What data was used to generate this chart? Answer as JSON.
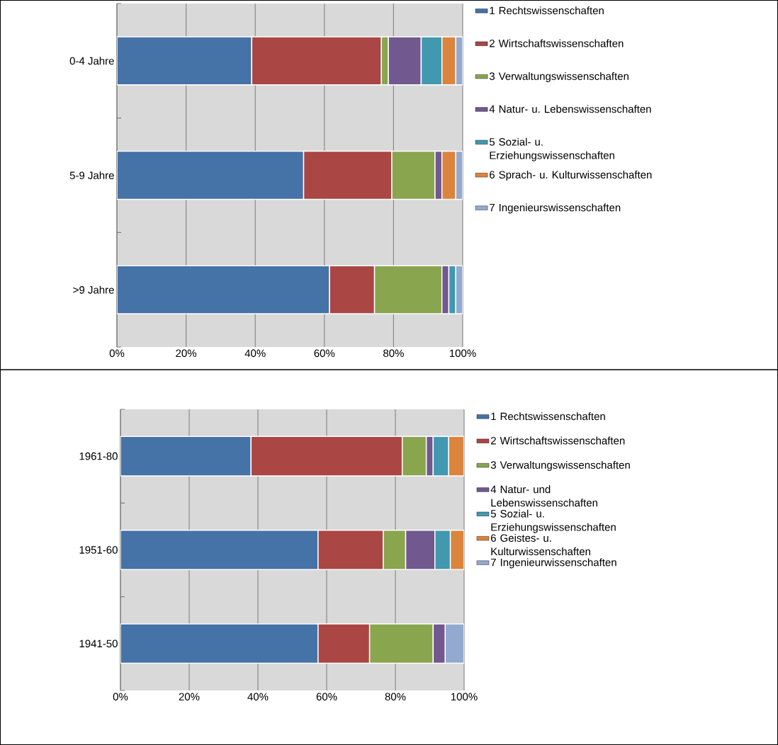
{
  "chart_data": [
    {
      "type": "bar",
      "orientation": "horizontal",
      "stacked": true,
      "categories": [
        "0-4 Jahre",
        "5-9 Jahre",
        ">9 Jahre"
      ],
      "series": [
        {
          "name": "1 Rechtswissenschaften",
          "color": "#4572a7",
          "values": [
            39,
            54,
            61.5
          ]
        },
        {
          "name": "2 Wirtschaftswissenschaften",
          "color": "#aa4643",
          "values": [
            37.5,
            25.5,
            13
          ]
        },
        {
          "name": "3 Verwaltungswissenschaften",
          "color": "#89a54e",
          "values": [
            2,
            12.5,
            19.5
          ]
        },
        {
          "name": "4 Natur- u. Lebenswissenschaften",
          "color": "#71588f",
          "values": [
            9.5,
            2,
            2
          ]
        },
        {
          "name": "5 Sozial- u. Erziehungswissenschaften",
          "color": "#4198af",
          "values": [
            6,
            null,
            2
          ]
        },
        {
          "name": "6 Sprach- u. Kulturwissenschaften",
          "color": "#db843d",
          "values": [
            4,
            4,
            null
          ]
        },
        {
          "name": "7 Ingenieurswissenschaften",
          "color": "#93a9cf",
          "values": [
            2,
            2,
            2
          ]
        }
      ],
      "xlim": [
        0,
        100
      ],
      "xticks": [
        {
          "value": 0,
          "label": "0%"
        },
        {
          "value": 20,
          "label": "20%"
        },
        {
          "value": 40,
          "label": "40%"
        },
        {
          "value": 60,
          "label": "60%"
        },
        {
          "value": 80,
          "label": "80%"
        },
        {
          "value": 100,
          "label": "100%"
        }
      ],
      "grid": "x",
      "legend": "right"
    },
    {
      "type": "bar",
      "orientation": "horizontal",
      "stacked": true,
      "categories": [
        "1961-80",
        "1951-60",
        "1941-50"
      ],
      "series": [
        {
          "name": "1 Rechtswissenschaften",
          "color": "#4572a7",
          "values": [
            38,
            57.5,
            57.5
          ]
        },
        {
          "name": "2 Wirtschaftswissenschaften",
          "color": "#aa4643",
          "values": [
            44,
            19,
            15
          ]
        },
        {
          "name": "3 Verwaltungswissenschaften",
          "color": "#89a54e",
          "values": [
            7,
            6.5,
            18.5
          ]
        },
        {
          "name": "4 Natur- und Lebenswissenschaften",
          "color": "#71588f",
          "values": [
            2,
            8.5,
            3.5
          ]
        },
        {
          "name": "5 Sozial- u. Erziehungswissenschaften",
          "color": "#4198af",
          "values": [
            4.5,
            4.5,
            null
          ]
        },
        {
          "name": "6 Geistes- u. Kulturwissenschaften",
          "color": "#db843d",
          "values": [
            4.5,
            4,
            null
          ]
        },
        {
          "name": "7 Ingenieurwissenschaften",
          "color": "#93a9cf",
          "values": [
            null,
            null,
            5.5
          ]
        }
      ],
      "xlim": [
        0,
        100
      ],
      "xticks": [
        {
          "value": 0,
          "label": "0%"
        },
        {
          "value": 20,
          "label": "20%"
        },
        {
          "value": 40,
          "label": "40%"
        },
        {
          "value": 60,
          "label": "60%"
        },
        {
          "value": 80,
          "label": "80%"
        },
        {
          "value": 100,
          "label": "100%"
        }
      ],
      "grid": "x",
      "legend": "right"
    }
  ]
}
